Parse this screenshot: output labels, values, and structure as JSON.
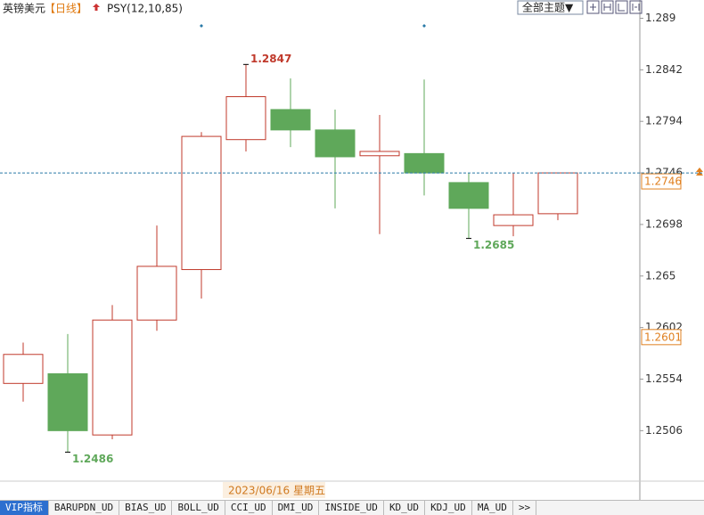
{
  "header": {
    "symbol": "英镑美元",
    "period": "【日线】",
    "indicator": "PSY(12,10,85)",
    "theme_button": "全部主题▼"
  },
  "chart_data": {
    "type": "candlestick",
    "up_color": "#c0392b",
    "down_color": "#5fa85a",
    "open": [
      1.255,
      1.2559,
      1.2502,
      1.2609,
      1.2656,
      1.2777,
      1.2805,
      1.2786,
      1.2762,
      1.2764,
      1.2737,
      1.2697,
      1.2708
    ],
    "high": [
      1.2588,
      1.2596,
      1.2623,
      1.2697,
      1.2784,
      1.2847,
      1.2834,
      1.2805,
      1.28,
      1.2833,
      1.2746,
      1.2746,
      1.2746
    ],
    "low": [
      1.2533,
      1.2486,
      1.2498,
      1.2599,
      1.2629,
      1.2766,
      1.277,
      1.2713,
      1.2689,
      1.2725,
      1.2685,
      1.2687,
      1.2702
    ],
    "close": [
      1.2577,
      1.2506,
      1.2609,
      1.2659,
      1.278,
      1.2817,
      1.2786,
      1.2761,
      1.2766,
      1.2746,
      1.2713,
      1.2707,
      1.2746
    ],
    "ylim": [
      1.2459,
      1.2907
    ],
    "yticks": [
      1.289,
      1.2842,
      1.2794,
      1.2746,
      1.2698,
      1.265,
      1.2602,
      1.2554,
      1.2506
    ],
    "annotations": [
      {
        "value": 1.2847,
        "label": "1.2847",
        "kind": "high"
      },
      {
        "value": 1.2486,
        "label": "1.2486",
        "kind": "low"
      },
      {
        "value": 1.2685,
        "label": "1.2685",
        "kind": "low"
      }
    ],
    "price_labels": [
      {
        "value": 1.2746,
        "label": "1.2746"
      },
      {
        "value": 1.2601,
        "label": "1.2601"
      }
    ],
    "crosshair_date": "2023/06/16 星期五"
  },
  "tabs": [
    "VIP指标",
    "BARUPDN_UD",
    "BIAS_UD",
    "BOLL_UD",
    "CCI_UD",
    "DMI_UD",
    "INSIDE_UD",
    "KD_UD",
    "KDJ_UD",
    "MA_UD",
    ">>"
  ]
}
